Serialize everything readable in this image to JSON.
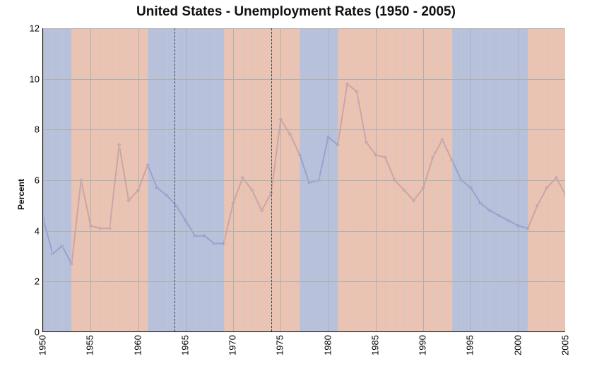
{
  "chart": {
    "type": "line",
    "title": "United States - Unemployment Rates (1950 - 2005)",
    "title_fontsize": 19,
    "ylabel": "Percent",
    "label_fontsize": 12,
    "xlim": [
      1950,
      2005
    ],
    "ylim": [
      0,
      12
    ],
    "xtick_step": 5,
    "ytick_step": 2,
    "xtick_rotation": -90,
    "minor_xtick_step": 1,
    "background_color": "#ffffff",
    "grid_color_major": "#b0b0b0",
    "grid_color_minor": "#c8c8c8",
    "minor_grid_alpha": 0.6,
    "line_color": "#2e2e9e",
    "marker_color": "#2e2e9e",
    "line_width": 2,
    "marker_size": 4,
    "marker_style": "diamond",
    "dashed_line_color": "#444444",
    "dashed_years": [
      1963.8,
      1974
    ],
    "band_color_blue": "#aab6d6",
    "band_color_orange": "#e7b9a6",
    "band_alpha": 0.85,
    "bands": [
      {
        "start": 1950,
        "end": 1953,
        "color": "blue"
      },
      {
        "start": 1953,
        "end": 1961,
        "color": "orange"
      },
      {
        "start": 1961,
        "end": 1969,
        "color": "blue"
      },
      {
        "start": 1969,
        "end": 1977,
        "color": "orange"
      },
      {
        "start": 1977,
        "end": 1981,
        "color": "blue"
      },
      {
        "start": 1981,
        "end": 1993,
        "color": "orange"
      },
      {
        "start": 1993,
        "end": 2001,
        "color": "blue"
      },
      {
        "start": 2001,
        "end": 2005.5,
        "color": "orange"
      }
    ],
    "years": [
      1950,
      1951,
      1952,
      1953,
      1954,
      1955,
      1956,
      1957,
      1958,
      1959,
      1960,
      1961,
      1962,
      1963,
      1964,
      1965,
      1966,
      1967,
      1968,
      1969,
      1970,
      1971,
      1972,
      1973,
      1974,
      1975,
      1976,
      1977,
      1978,
      1979,
      1980,
      1981,
      1982,
      1983,
      1984,
      1985,
      1986,
      1987,
      1988,
      1989,
      1990,
      1991,
      1992,
      1993,
      1994,
      1995,
      1996,
      1997,
      1998,
      1999,
      2000,
      2001,
      2002,
      2003,
      2004,
      2005
    ],
    "values": [
      4.5,
      3.1,
      3.4,
      2.7,
      6.0,
      4.2,
      4.1,
      4.1,
      7.4,
      5.2,
      5.6,
      6.6,
      5.7,
      5.4,
      5.0,
      4.4,
      3.8,
      3.8,
      3.5,
      3.5,
      5.1,
      6.1,
      5.6,
      4.8,
      5.5,
      8.4,
      7.8,
      7.0,
      5.9,
      6.0,
      7.7,
      7.4,
      9.8,
      9.5,
      7.5,
      7.0,
      6.9,
      6.0,
      5.6,
      5.2,
      5.7,
      6.9,
      7.6,
      6.8,
      6.0,
      5.7,
      5.1,
      4.8,
      4.6,
      4.4,
      4.2,
      4.1,
      5.0,
      5.7,
      6.1,
      5.4
    ]
  }
}
